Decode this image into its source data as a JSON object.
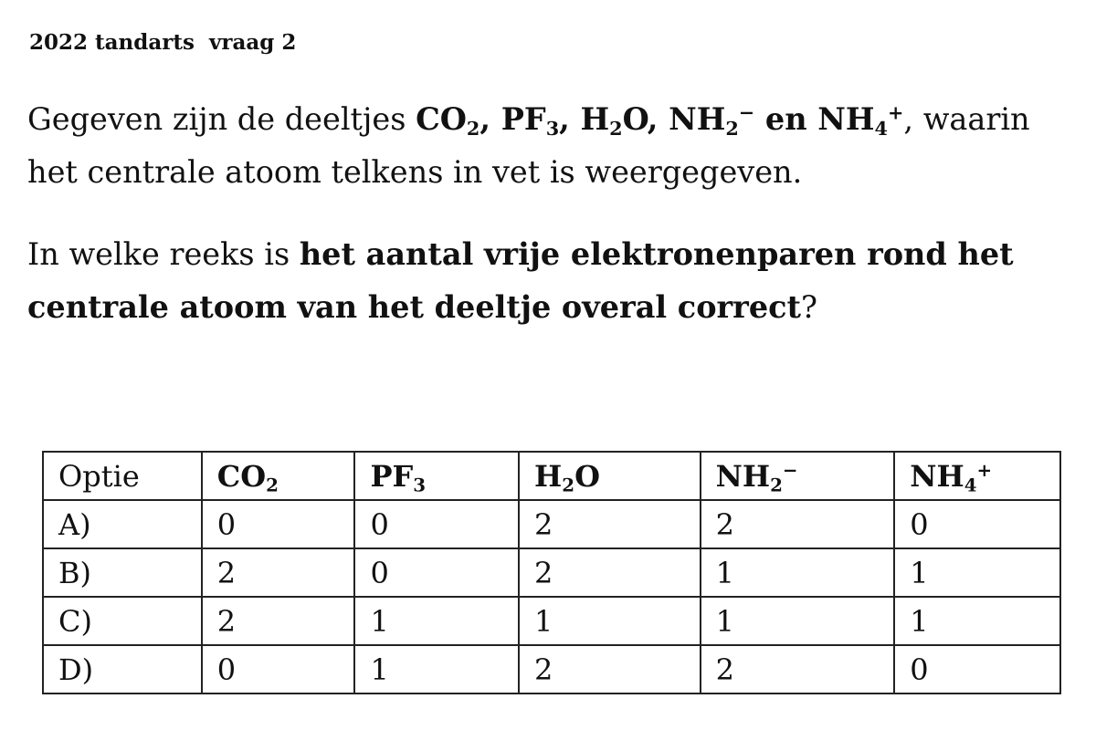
{
  "heading": "2022 tandarts  vraag 2",
  "paragraph1": {
    "before": "Gegeven zijn de deeltjes ",
    "particles": [
      {
        "base": "CO",
        "sub": "2",
        "sup": "",
        "sep": ", "
      },
      {
        "base": "PF",
        "sub": "3",
        "sup": "",
        "sep": ", "
      },
      {
        "base": "H",
        "sub": "2",
        "sup": "",
        "tail": "O",
        "sep": ", "
      },
      {
        "base": "NH",
        "sub": "2",
        "sup": "−",
        "sep": " en "
      },
      {
        "base": "NH",
        "sub": "4",
        "sup": "+",
        "sep": ""
      }
    ],
    "after": ", waarin het centrale atoom telkens in vet is weergegeven."
  },
  "paragraph2": {
    "before": "In welke reeks is ",
    "bold": "het aantal vrije elektronenparen rond het centrale atoom van het deeltje overal correct",
    "after": "?"
  },
  "table": {
    "header_label": "Optie",
    "columns": [
      {
        "base": "CO",
        "sub": "2",
        "sup": "",
        "tail": ""
      },
      {
        "base": "PF",
        "sub": "3",
        "sup": "",
        "tail": ""
      },
      {
        "base": "H",
        "sub": "2",
        "sup": "",
        "tail": "O"
      },
      {
        "base": "NH",
        "sub": "2",
        "sup": "−",
        "tail": ""
      },
      {
        "base": "NH",
        "sub": "4",
        "sup": "+",
        "tail": ""
      }
    ],
    "rows": [
      {
        "option": "A)",
        "values": [
          "0",
          "0",
          "2",
          "2",
          "0"
        ]
      },
      {
        "option": "B)",
        "values": [
          "2",
          "0",
          "2",
          "1",
          "1"
        ]
      },
      {
        "option": "C)",
        "values": [
          "2",
          "1",
          "1",
          "1",
          "1"
        ]
      },
      {
        "option": "D)",
        "values": [
          "0",
          "1",
          "2",
          "2",
          "0"
        ]
      }
    ]
  }
}
